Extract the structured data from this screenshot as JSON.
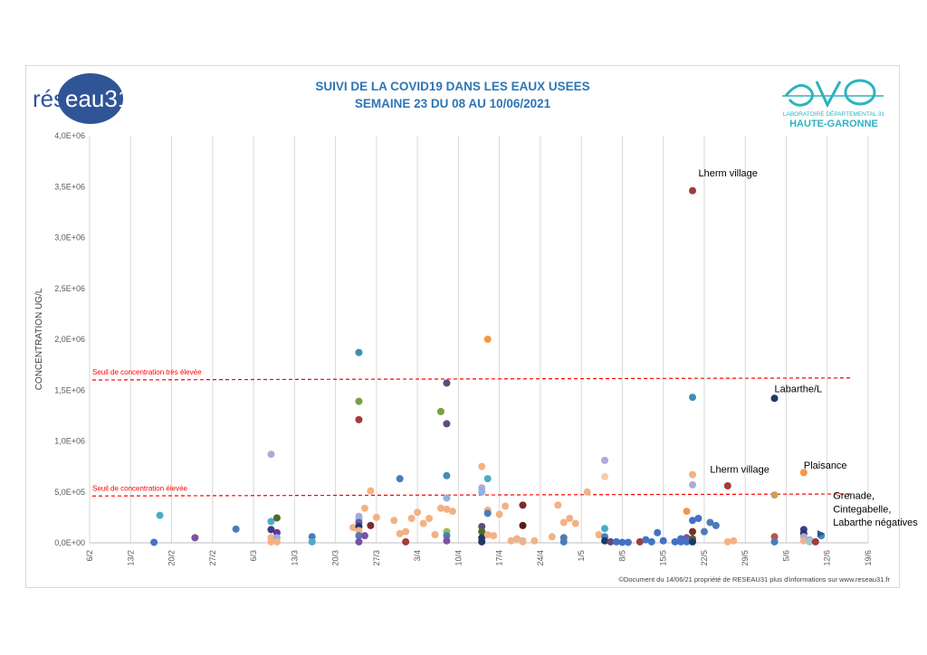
{
  "header": {
    "title_line1": "SUIVI DE LA COVID19 DANS LES EAUX USEES",
    "title_line2": "SEMAINE 23 DU 08 AU 10/06/2021"
  },
  "logos": {
    "left_text_a": "rés",
    "left_text_b": "eau31",
    "right_sub1": "LABORATOIRE DÉPARTEMENTAL 31",
    "right_sub2": "HAUTE-GARONNE"
  },
  "footer": "©Document du 14/06/21 propriété de RESEAU31 plus d'informations sur www.reseau31.fr",
  "colors": {
    "title": "#2e75b6",
    "threshold": "#ff0000",
    "reseau_blue": "#2f5597",
    "cd31_teal": "#2bb3c0"
  },
  "chart_data": {
    "type": "scatter",
    "ylabel": "CONCENTRATION UG/L",
    "xlabel": "",
    "ylim": [
      0,
      4000000
    ],
    "yticks": [
      0,
      500000,
      1000000,
      1500000,
      2000000,
      2500000,
      3000000,
      3500000,
      4000000
    ],
    "ytick_labels": [
      "0,0E+00",
      "5,0E+05",
      "1,0E+06",
      "1,5E+06",
      "2,0E+06",
      "2,5E+06",
      "3,0E+06",
      "3,5E+06",
      "4,0E+06"
    ],
    "xlim": [
      "2021-02-06",
      "2021-06-19"
    ],
    "xticks": [
      "2021-02-06",
      "2021-02-13",
      "2021-02-20",
      "2021-02-27",
      "2021-03-06",
      "2021-03-13",
      "2021-03-20",
      "2021-03-27",
      "2021-04-03",
      "2021-04-10",
      "2021-04-17",
      "2021-04-24",
      "2021-05-01",
      "2021-05-08",
      "2021-05-15",
      "2021-05-22",
      "2021-05-29",
      "2021-06-05",
      "2021-06-12",
      "2021-06-19"
    ],
    "xtick_labels": [
      "6/2",
      "13/2",
      "20/2",
      "27/2",
      "6/3",
      "13/3",
      "20/3",
      "27/3",
      "3/4",
      "10/4",
      "17/4",
      "24/4",
      "1/5",
      "8/5",
      "15/5",
      "22/5",
      "29/5",
      "5/6",
      "12/6",
      "19/6"
    ],
    "grid_x": true,
    "grid_y": false,
    "thresholds": [
      {
        "label": "Seuil de concentration très élevée",
        "y_start": 1600000,
        "y_end": 1620000
      },
      {
        "label": "Seuil de concentration élevée",
        "y_start": 460000,
        "y_end": 480000
      }
    ],
    "annotations": [
      {
        "text": "Lherm village",
        "x": "2021-05-21",
        "y": 3600000
      },
      {
        "text": "Labarthe/L",
        "x": "2021-06-03",
        "y": 1480000
      },
      {
        "text": "Lherm village",
        "x": "2021-05-23",
        "y": 690000
      },
      {
        "text": "Plaisance",
        "x": "2021-06-08",
        "y": 730000
      },
      {
        "text": "Grenade,",
        "x": "2021-06-13",
        "y": 430000
      },
      {
        "text": "Cintegabelle,",
        "x": "2021-06-13",
        "y": 300000
      },
      {
        "text": "Labarthe négatives",
        "x": "2021-06-13",
        "y": 170000
      }
    ],
    "points": [
      {
        "x": "2021-02-17",
        "y": 5000,
        "c": "#4472c4"
      },
      {
        "x": "2021-02-18",
        "y": 270000,
        "c": "#4bacc6"
      },
      {
        "x": "2021-02-24",
        "y": 50000,
        "c": "#7a52a5"
      },
      {
        "x": "2021-03-03",
        "y": 135000,
        "c": "#4a7cb8"
      },
      {
        "x": "2021-03-09",
        "y": 870000,
        "c": "#b4a7d6"
      },
      {
        "x": "2021-03-09",
        "y": 210000,
        "c": "#4bacc6"
      },
      {
        "x": "2021-03-09",
        "y": 130000,
        "c": "#3b3b8c"
      },
      {
        "x": "2021-03-09",
        "y": 50000,
        "c": "#f4b183"
      },
      {
        "x": "2021-03-09",
        "y": 10000,
        "c": "#f4b183"
      },
      {
        "x": "2021-03-10",
        "y": 245000,
        "c": "#4e6b2a"
      },
      {
        "x": "2021-03-10",
        "y": 100000,
        "c": "#7030a0"
      },
      {
        "x": "2021-03-10",
        "y": 50000,
        "c": "#8db4e2"
      },
      {
        "x": "2021-03-10",
        "y": 10000,
        "c": "#f4b183"
      },
      {
        "x": "2021-03-16",
        "y": 60000,
        "c": "#4a7cb8"
      },
      {
        "x": "2021-03-16",
        "y": 10000,
        "c": "#4bacc6"
      },
      {
        "x": "2021-03-23",
        "y": 150000,
        "c": "#f4b183"
      },
      {
        "x": "2021-03-24",
        "y": 1870000,
        "c": "#3e8fb0"
      },
      {
        "x": "2021-03-24",
        "y": 1390000,
        "c": "#77a03e"
      },
      {
        "x": "2021-03-24",
        "y": 1210000,
        "c": "#a33c3c"
      },
      {
        "x": "2021-03-24",
        "y": 260000,
        "c": "#b4a7d6"
      },
      {
        "x": "2021-03-24",
        "y": 230000,
        "c": "#8db4e2"
      },
      {
        "x": "2021-03-24",
        "y": 200000,
        "c": "#7a52a5"
      },
      {
        "x": "2021-03-24",
        "y": 160000,
        "c": "#1f3864"
      },
      {
        "x": "2021-03-24",
        "y": 120000,
        "c": "#f4b183"
      },
      {
        "x": "2021-03-24",
        "y": 70000,
        "c": "#4a7cb8"
      },
      {
        "x": "2021-03-24",
        "y": 10000,
        "c": "#7a52a5"
      },
      {
        "x": "2021-03-25",
        "y": 340000,
        "c": "#f4b183"
      },
      {
        "x": "2021-03-25",
        "y": 70000,
        "c": "#7a52a5"
      },
      {
        "x": "2021-03-26",
        "y": 510000,
        "c": "#f4b183"
      },
      {
        "x": "2021-03-26",
        "y": 170000,
        "c": "#7b2c2c"
      },
      {
        "x": "2021-03-27",
        "y": 250000,
        "c": "#f4b183"
      },
      {
        "x": "2021-03-30",
        "y": 220000,
        "c": "#f4b183"
      },
      {
        "x": "2021-03-31",
        "y": 630000,
        "c": "#4a7cb8"
      },
      {
        "x": "2021-03-31",
        "y": 90000,
        "c": "#f4b183"
      },
      {
        "x": "2021-04-01",
        "y": 110000,
        "c": "#f4b183"
      },
      {
        "x": "2021-04-01",
        "y": 10000,
        "c": "#a33c3c"
      },
      {
        "x": "2021-04-02",
        "y": 240000,
        "c": "#f4b183"
      },
      {
        "x": "2021-04-03",
        "y": 300000,
        "c": "#f4b183"
      },
      {
        "x": "2021-04-04",
        "y": 190000,
        "c": "#f4b183"
      },
      {
        "x": "2021-04-05",
        "y": 240000,
        "c": "#f4b183"
      },
      {
        "x": "2021-04-06",
        "y": 80000,
        "c": "#f4b183"
      },
      {
        "x": "2021-04-07",
        "y": 1290000,
        "c": "#77a03e"
      },
      {
        "x": "2021-04-07",
        "y": 340000,
        "c": "#f4b183"
      },
      {
        "x": "2021-04-08",
        "y": 1570000,
        "c": "#604a7b"
      },
      {
        "x": "2021-04-08",
        "y": 1170000,
        "c": "#604a7b"
      },
      {
        "x": "2021-04-08",
        "y": 660000,
        "c": "#3e8fb0"
      },
      {
        "x": "2021-04-08",
        "y": 440000,
        "c": "#8db4e2"
      },
      {
        "x": "2021-04-08",
        "y": 330000,
        "c": "#f4b183"
      },
      {
        "x": "2021-04-08",
        "y": 110000,
        "c": "#9bbb59"
      },
      {
        "x": "2021-04-08",
        "y": 70000,
        "c": "#4a7cb8"
      },
      {
        "x": "2021-04-08",
        "y": 20000,
        "c": "#7a52a5"
      },
      {
        "x": "2021-04-09",
        "y": 310000,
        "c": "#f4b183"
      },
      {
        "x": "2021-04-14",
        "y": 750000,
        "c": "#f4b183"
      },
      {
        "x": "2021-04-14",
        "y": 540000,
        "c": "#b4a7d6"
      },
      {
        "x": "2021-04-14",
        "y": 500000,
        "c": "#8db4e2"
      },
      {
        "x": "2021-04-14",
        "y": 160000,
        "c": "#604a7b"
      },
      {
        "x": "2021-04-14",
        "y": 110000,
        "c": "#4e6b2a"
      },
      {
        "x": "2021-04-14",
        "y": 50000,
        "c": "#1f3864"
      },
      {
        "x": "2021-04-14",
        "y": 10000,
        "c": "#1f3864"
      },
      {
        "x": "2021-04-15",
        "y": 2000000,
        "c": "#f79646"
      },
      {
        "x": "2021-04-15",
        "y": 630000,
        "c": "#4bacc6"
      },
      {
        "x": "2021-04-15",
        "y": 320000,
        "c": "#f4b183"
      },
      {
        "x": "2021-04-15",
        "y": 290000,
        "c": "#4a7cb8"
      },
      {
        "x": "2021-04-15",
        "y": 80000,
        "c": "#f4b183"
      },
      {
        "x": "2021-04-16",
        "y": 70000,
        "c": "#f4b183"
      },
      {
        "x": "2021-04-17",
        "y": 280000,
        "c": "#f4b183"
      },
      {
        "x": "2021-04-18",
        "y": 360000,
        "c": "#f4b183"
      },
      {
        "x": "2021-04-19",
        "y": 20000,
        "c": "#f4b183"
      },
      {
        "x": "2021-04-20",
        "y": 40000,
        "c": "#f4b183"
      },
      {
        "x": "2021-04-21",
        "y": 370000,
        "c": "#7b2c2c"
      },
      {
        "x": "2021-04-21",
        "y": 170000,
        "c": "#5a1e1e"
      },
      {
        "x": "2021-04-21",
        "y": 20000,
        "c": "#92cddc"
      },
      {
        "x": "2021-04-21",
        "y": 10000,
        "c": "#f4b183"
      },
      {
        "x": "2021-04-23",
        "y": 20000,
        "c": "#f4b183"
      },
      {
        "x": "2021-04-26",
        "y": 60000,
        "c": "#f4b183"
      },
      {
        "x": "2021-04-27",
        "y": 370000,
        "c": "#f4b183"
      },
      {
        "x": "2021-04-28",
        "y": 200000,
        "c": "#f4b183"
      },
      {
        "x": "2021-04-28",
        "y": 50000,
        "c": "#4a7cb8"
      },
      {
        "x": "2021-04-28",
        "y": 10000,
        "c": "#4a7cb8"
      },
      {
        "x": "2021-04-29",
        "y": 240000,
        "c": "#f4b183"
      },
      {
        "x": "2021-04-30",
        "y": 190000,
        "c": "#f4b183"
      },
      {
        "x": "2021-05-02",
        "y": 500000,
        "c": "#f4b183"
      },
      {
        "x": "2021-05-04",
        "y": 80000,
        "c": "#f4b183"
      },
      {
        "x": "2021-05-05",
        "y": 810000,
        "c": "#b4a7d6"
      },
      {
        "x": "2021-05-05",
        "y": 650000,
        "c": "#f8cbad"
      },
      {
        "x": "2021-05-05",
        "y": 140000,
        "c": "#4bacc6"
      },
      {
        "x": "2021-05-05",
        "y": 60000,
        "c": "#4a7cb8"
      },
      {
        "x": "2021-05-05",
        "y": 20000,
        "c": "#1f3864"
      },
      {
        "x": "2021-05-06",
        "y": 10000,
        "c": "#604a7b"
      },
      {
        "x": "2021-05-07",
        "y": 10000,
        "c": "#4472c4"
      },
      {
        "x": "2021-05-08",
        "y": 5000,
        "c": "#4472c4"
      },
      {
        "x": "2021-05-09",
        "y": 5000,
        "c": "#4472c4"
      },
      {
        "x": "2021-05-11",
        "y": 10000,
        "c": "#a33c3c"
      },
      {
        "x": "2021-05-12",
        "y": 30000,
        "c": "#4472c4"
      },
      {
        "x": "2021-05-13",
        "y": 10000,
        "c": "#4472c4"
      },
      {
        "x": "2021-05-14",
        "y": 100000,
        "c": "#4472c4"
      },
      {
        "x": "2021-05-15",
        "y": 20000,
        "c": "#4472c4"
      },
      {
        "x": "2021-05-17",
        "y": 10000,
        "c": "#4472c4"
      },
      {
        "x": "2021-05-18",
        "y": 40000,
        "c": "#4472c4"
      },
      {
        "x": "2021-05-18",
        "y": 10000,
        "c": "#4472c4"
      },
      {
        "x": "2021-05-19",
        "y": 310000,
        "c": "#f79646"
      },
      {
        "x": "2021-05-19",
        "y": 50000,
        "c": "#7a52a5"
      },
      {
        "x": "2021-05-19",
        "y": 10000,
        "c": "#4472c4"
      },
      {
        "x": "2021-05-20",
        "y": 3460000,
        "c": "#a33c3c"
      },
      {
        "x": "2021-05-20",
        "y": 1430000,
        "c": "#3e8fb0"
      },
      {
        "x": "2021-05-20",
        "y": 670000,
        "c": "#f4b183"
      },
      {
        "x": "2021-05-20",
        "y": 570000,
        "c": "#b4a7d6"
      },
      {
        "x": "2021-05-20",
        "y": 220000,
        "c": "#4472c4"
      },
      {
        "x": "2021-05-20",
        "y": 110000,
        "c": "#7b2c2c"
      },
      {
        "x": "2021-05-20",
        "y": 40000,
        "c": "#4e6b2a"
      },
      {
        "x": "2021-05-20",
        "y": 10000,
        "c": "#1f3864"
      },
      {
        "x": "2021-05-21",
        "y": 240000,
        "c": "#4472c4"
      },
      {
        "x": "2021-05-22",
        "y": 110000,
        "c": "#4a7cb8"
      },
      {
        "x": "2021-05-23",
        "y": 200000,
        "c": "#4a7cb8"
      },
      {
        "x": "2021-05-24",
        "y": 170000,
        "c": "#4a7cb8"
      },
      {
        "x": "2021-05-26",
        "y": 560000,
        "c": "#a33c3c"
      },
      {
        "x": "2021-05-26",
        "y": 10000,
        "c": "#f4b183"
      },
      {
        "x": "2021-05-27",
        "y": 20000,
        "c": "#f4b183"
      },
      {
        "x": "2021-06-03",
        "y": 1420000,
        "c": "#1f3864"
      },
      {
        "x": "2021-06-03",
        "y": 470000,
        "c": "#c9a15b"
      },
      {
        "x": "2021-06-03",
        "y": 60000,
        "c": "#c0504d"
      },
      {
        "x": "2021-06-03",
        "y": 10000,
        "c": "#4a7cb8"
      },
      {
        "x": "2021-06-08",
        "y": 690000,
        "c": "#f79646"
      },
      {
        "x": "2021-06-08",
        "y": 130000,
        "c": "#3b3b8c"
      },
      {
        "x": "2021-06-08",
        "y": 90000,
        "c": "#1f3864"
      },
      {
        "x": "2021-06-08",
        "y": 60000,
        "c": "#b4a7d6"
      },
      {
        "x": "2021-06-08",
        "y": 20000,
        "c": "#f4b183"
      },
      {
        "x": "2021-06-09",
        "y": 30000,
        "c": "#b4a7d6"
      },
      {
        "x": "2021-06-09",
        "y": 10000,
        "c": "#92cddc"
      },
      {
        "x": "2021-06-10",
        "y": 10000,
        "c": "#a33c3c"
      },
      {
        "x": "2021-06-11",
        "y": 70000,
        "c": "#3e8fb0"
      }
    ]
  }
}
